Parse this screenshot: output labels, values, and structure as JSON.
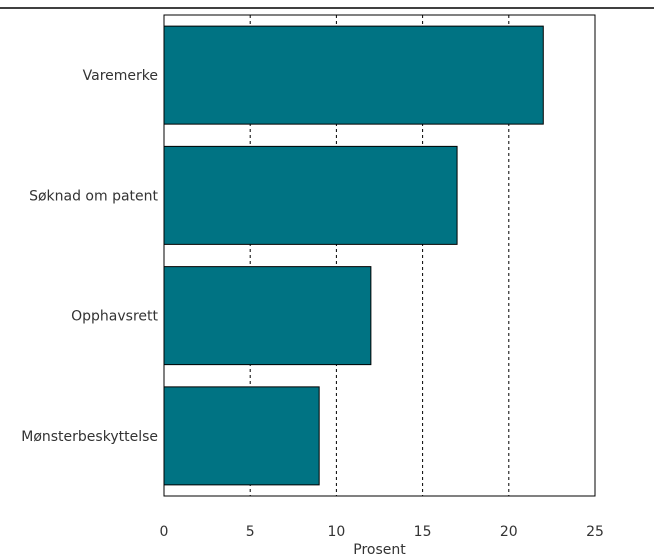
{
  "chart_data": {
    "type": "bar",
    "orientation": "horizontal",
    "categories": [
      "Varemerke",
      "Søknad om patent",
      "Opphavsrett",
      "Mønsterbeskyttelse"
    ],
    "values": [
      22,
      17,
      12,
      9
    ],
    "xlabel": "Prosent",
    "ylabel": "",
    "xlim": [
      0,
      25
    ],
    "xticks": [
      0,
      5,
      10,
      15,
      20,
      25
    ],
    "grid": "vertical-dashed",
    "bar_color": "#007383"
  }
}
